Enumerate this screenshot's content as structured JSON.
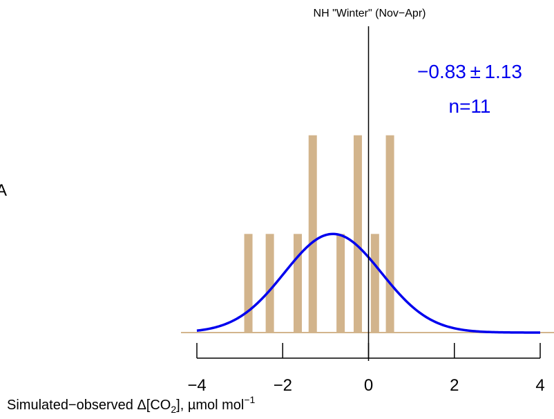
{
  "chart_data": {
    "type": "bar",
    "title": "NH \"Winter\" (Nov−Apr)",
    "xlabel_parts": {
      "prefix": "Simulated−observed Δ[CO",
      "sub": "2",
      "middle": "], µmol mol",
      "sup": "−1"
    },
    "ylabel_fragment": "A",
    "xlim": [
      -4,
      4
    ],
    "ylim": [
      0,
      3
    ],
    "x_ticks": [
      -4,
      -2,
      0,
      2,
      4
    ],
    "x_tick_labels": [
      "−4",
      "−2",
      "0",
      "2",
      "4"
    ],
    "bars": {
      "x": [
        -2.8,
        -2.3,
        -1.65,
        -1.3,
        -0.65,
        -0.25,
        0.15,
        0.5
      ],
      "values": [
        1,
        1,
        1,
        2,
        1,
        2,
        1,
        2
      ],
      "color": "#d2b48c"
    },
    "fit_curve": {
      "mean": -0.83,
      "sd": 1.13,
      "peak_value": 1.0,
      "color": "#0000ee"
    },
    "annotation": {
      "stat": "−0.83 ± 1.13",
      "n": "n=11",
      "color": "#0000ee"
    },
    "zero_line_x": 0
  }
}
